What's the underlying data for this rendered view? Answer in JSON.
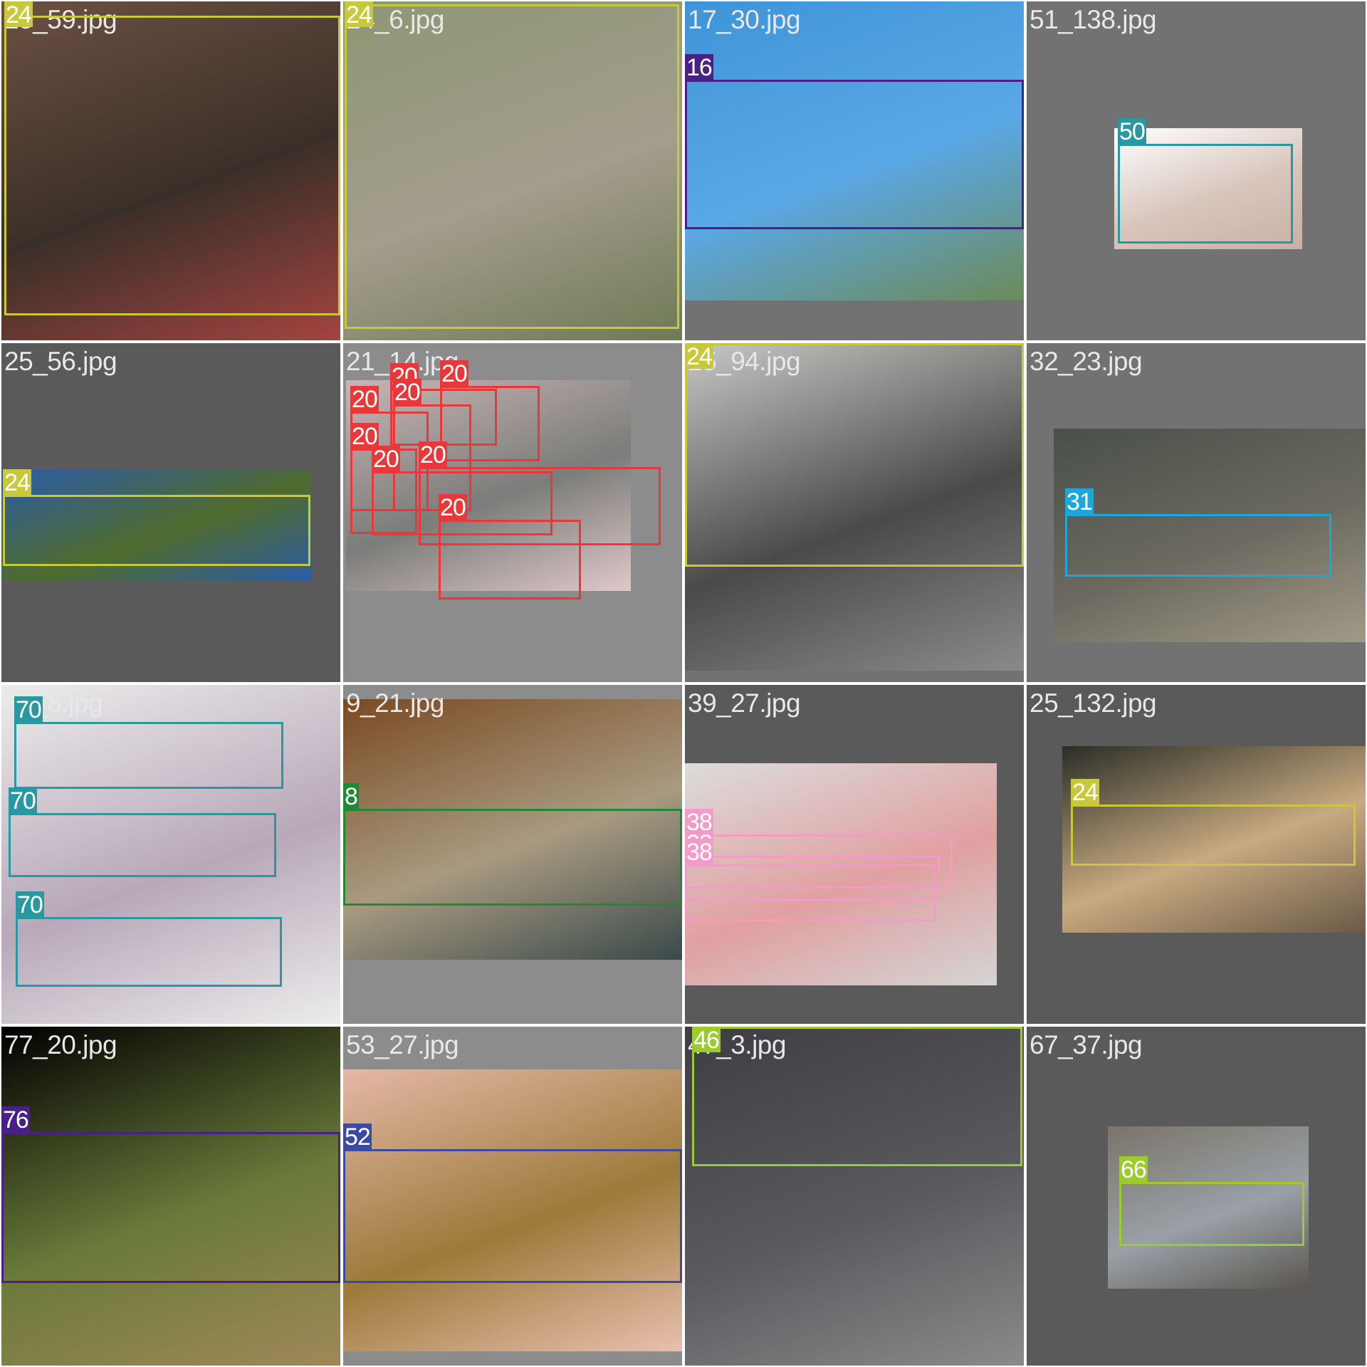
{
  "tiles": [
    {
      "filename": "25_59.jpg",
      "photo_colors": [
        "#6c5142",
        "#3a2f28",
        "#a44440"
      ],
      "detections": [
        {
          "label": "24",
          "color": "#c8c83a"
        }
      ]
    },
    {
      "filename": "24_6.jpg",
      "photo_colors": [
        "#8d9774",
        "#a39d8c",
        "#6f7a56"
      ],
      "detections": [
        {
          "label": "24",
          "color": "#c8c83a"
        }
      ]
    },
    {
      "filename": "17_30.jpg",
      "photo_colors": [
        "#3e94d8",
        "#5aa8e6",
        "#6c8a5a"
      ],
      "detections": [
        {
          "label": "16",
          "color": "#4a1f86"
        }
      ]
    },
    {
      "filename": "51_138.jpg",
      "photo_colors": [
        "#ffffff",
        "#d8c6bd",
        "#c9b0a5"
      ],
      "detections": [
        {
          "label": "50",
          "color": "#2a98a2"
        }
      ]
    },
    {
      "filename": "25_56.jpg",
      "photo_colors": [
        "#2a5ca8",
        "#4f6b2c",
        "#2a5ca8"
      ],
      "detections": [
        {
          "label": "24",
          "color": "#c8c83a"
        }
      ]
    },
    {
      "filename": "21_14.jpg",
      "photo_colors": [
        "#c8b5b5",
        "#7a7d7a",
        "#e0c8c8"
      ],
      "detections": [
        {
          "label": "20",
          "color": "#e8383a"
        },
        {
          "label": "20",
          "color": "#e8383a"
        },
        {
          "label": "20",
          "color": "#e8383a"
        },
        {
          "label": "20",
          "color": "#e8383a"
        },
        {
          "label": "20",
          "color": "#e8383a"
        },
        {
          "label": "20",
          "color": "#e8383a"
        },
        {
          "label": "20",
          "color": "#e8383a"
        },
        {
          "label": "20",
          "color": "#e8383a"
        }
      ]
    },
    {
      "filename": "25_94.jpg",
      "photo_colors": [
        "#c8c8c8",
        "#4a4a48",
        "#8a8a88"
      ],
      "detections": [
        {
          "label": "24",
          "color": "#c8c83a"
        }
      ]
    },
    {
      "filename": "32_23.jpg",
      "photo_colors": [
        "#4a5048",
        "#6c6a60",
        "#a09a88"
      ],
      "detections": [
        {
          "label": "31",
          "color": "#1aa8dc"
        }
      ]
    },
    {
      "filename": "70_8.jpg",
      "photo_colors": [
        "#ececec",
        "#b8a8b8",
        "#ececec"
      ],
      "detections": [
        {
          "label": "70",
          "color": "#2a98a2"
        },
        {
          "label": "70",
          "color": "#2a98a2"
        },
        {
          "label": "70",
          "color": "#2a98a2"
        }
      ]
    },
    {
      "filename": "9_21.jpg",
      "photo_colors": [
        "#7a4a22",
        "#a89a80",
        "#3a4a4a"
      ],
      "detections": [
        {
          "label": "8",
          "color": "#1e8a34"
        }
      ]
    },
    {
      "filename": "39_27.jpg",
      "photo_colors": [
        "#dcdcdc",
        "#e0a0a0",
        "#d4d4d4"
      ],
      "detections": [
        {
          "label": "38",
          "color": "#f49ac8"
        },
        {
          "label": "38",
          "color": "#f49ac8"
        },
        {
          "label": "38",
          "color": "#f49ac8"
        }
      ]
    },
    {
      "filename": "25_132.jpg",
      "photo_colors": [
        "#2a2e28",
        "#c8aa80",
        "#6a5a48"
      ],
      "detections": [
        {
          "label": "24",
          "color": "#c8c83a"
        }
      ]
    },
    {
      "filename": "77_20.jpg",
      "photo_colors": [
        "#000000",
        "#6a7a3a",
        "#a08858"
      ],
      "detections": [
        {
          "label": "76",
          "color": "#4a1f86"
        }
      ]
    },
    {
      "filename": "53_27.jpg",
      "photo_colors": [
        "#e4b8a6",
        "#9c7a3a",
        "#e8c0ae"
      ],
      "detections": [
        {
          "label": "52",
          "color": "#3a4aa0"
        }
      ]
    },
    {
      "filename": "47_3.jpg",
      "photo_colors": [
        "#3e3e42",
        "#5a5a5e",
        "#8a8a8c"
      ],
      "detections": [
        {
          "label": "46",
          "color": "#9ccc2a"
        }
      ]
    },
    {
      "filename": "67_37.jpg",
      "photo_colors": [
        "#7a746a",
        "#9aa0a6",
        "#5a5650"
      ],
      "detections": [
        {
          "label": "66",
          "color": "#9ccc2a"
        }
      ]
    }
  ]
}
